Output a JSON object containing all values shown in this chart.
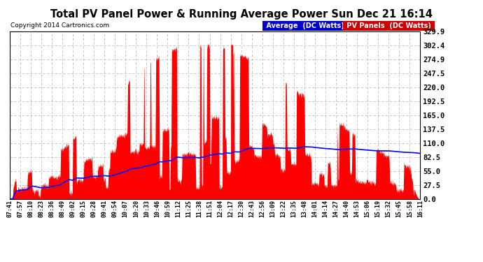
{
  "title": "Total PV Panel Power & Running Average Power Sun Dec 21 16:14",
  "copyright": "Copyright 2014 Cartronics.com",
  "ylabel_right_ticks": [
    0.0,
    27.5,
    55.0,
    82.5,
    110.0,
    137.5,
    165.0,
    192.5,
    220.0,
    247.5,
    274.9,
    302.4,
    329.9
  ],
  "ymax": 329.9,
  "ymin": 0.0,
  "bg_color": "#ffffff",
  "grid_color": "#bbbbbb",
  "pv_color": "#ff0000",
  "avg_color": "#0000ff",
  "legend_avg_label": "Average  (DC Watts)",
  "legend_pv_label": "PV Panels  (DC Watts)",
  "legend_avg_bg": "#0000cc",
  "legend_pv_bg": "#cc0000",
  "x_tick_labels": [
    "07:41",
    "07:57",
    "08:10",
    "08:23",
    "08:36",
    "08:49",
    "09:02",
    "09:15",
    "09:28",
    "09:41",
    "09:54",
    "10:07",
    "10:20",
    "10:33",
    "10:46",
    "10:59",
    "11:12",
    "11:25",
    "11:38",
    "11:51",
    "12:04",
    "12:17",
    "12:30",
    "12:43",
    "12:56",
    "13:09",
    "13:22",
    "13:35",
    "13:48",
    "14:01",
    "14:14",
    "14:27",
    "14:40",
    "14:53",
    "15:06",
    "15:19",
    "15:32",
    "15:45",
    "15:58",
    "16:11"
  ]
}
